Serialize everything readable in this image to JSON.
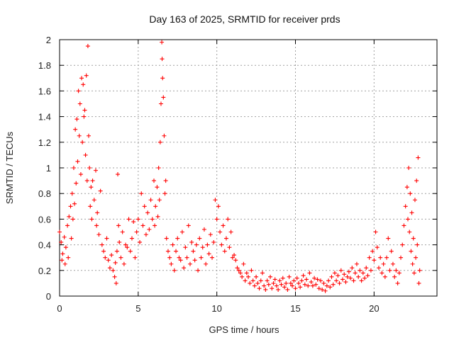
{
  "chart_data": {
    "type": "scatter",
    "title": "Day 163 of 2025, SRMTID for receiver prds",
    "xlabel": "GPS time / hours",
    "ylabel": "SRMTID / TECUs",
    "xlim": [
      0,
      24
    ],
    "ylim": [
      0,
      2
    ],
    "xticks": [
      0,
      5,
      10,
      15,
      20
    ],
    "yticks": [
      0,
      0.2,
      0.4,
      0.6,
      0.8,
      1,
      1.2,
      1.4,
      1.6,
      1.8,
      2
    ],
    "xtick_labels": [
      "0",
      "5",
      "10",
      "15",
      "20"
    ],
    "ytick_labels": [
      "0",
      "0.2",
      "0.4",
      "0.6",
      "0.8",
      "1",
      "1.2",
      "1.4",
      "1.6",
      "1.8",
      "2"
    ],
    "grid": true,
    "marker": "+",
    "color": "#ff0000",
    "series": [
      {
        "name": "SRMTID",
        "points": [
          [
            0.0,
            0.5
          ],
          [
            0.1,
            0.42
          ],
          [
            0.15,
            0.28
          ],
          [
            0.2,
            0.33
          ],
          [
            0.3,
            0.46
          ],
          [
            0.35,
            0.25
          ],
          [
            0.4,
            0.38
          ],
          [
            0.5,
            0.55
          ],
          [
            0.55,
            0.3
          ],
          [
            0.6,
            0.62
          ],
          [
            0.7,
            0.7
          ],
          [
            0.75,
            0.45
          ],
          [
            0.8,
            0.8
          ],
          [
            0.85,
            0.6
          ],
          [
            0.9,
            1.0
          ],
          [
            0.95,
            0.72
          ],
          [
            1.0,
            1.3
          ],
          [
            1.05,
            0.88
          ],
          [
            1.1,
            1.38
          ],
          [
            1.15,
            1.05
          ],
          [
            1.2,
            1.6
          ],
          [
            1.25,
            1.25
          ],
          [
            1.3,
            1.5
          ],
          [
            1.35,
            0.95
          ],
          [
            1.4,
            1.7
          ],
          [
            1.45,
            1.2
          ],
          [
            1.5,
            1.65
          ],
          [
            1.55,
            1.4
          ],
          [
            1.6,
            1.45
          ],
          [
            1.65,
            1.1
          ],
          [
            1.7,
            1.72
          ],
          [
            1.75,
            0.9
          ],
          [
            1.8,
            1.95
          ],
          [
            1.85,
            1.25
          ],
          [
            1.9,
            1.0
          ],
          [
            1.95,
            0.7
          ],
          [
            2.0,
            0.85
          ],
          [
            2.05,
            0.6
          ],
          [
            2.1,
            0.9
          ],
          [
            2.2,
            0.75
          ],
          [
            2.3,
            0.98
          ],
          [
            2.35,
            0.55
          ],
          [
            2.4,
            0.65
          ],
          [
            2.5,
            0.48
          ],
          [
            2.6,
            0.82
          ],
          [
            2.7,
            0.4
          ],
          [
            2.8,
            0.35
          ],
          [
            2.9,
            0.3
          ],
          [
            3.0,
            0.45
          ],
          [
            3.1,
            0.28
          ],
          [
            3.2,
            0.22
          ],
          [
            3.3,
            0.32
          ],
          [
            3.4,
            0.2
          ],
          [
            3.5,
            0.15
          ],
          [
            3.55,
            0.26
          ],
          [
            3.6,
            0.1
          ],
          [
            3.65,
            0.35
          ],
          [
            3.7,
            0.95
          ],
          [
            3.75,
            0.55
          ],
          [
            3.8,
            0.42
          ],
          [
            3.9,
            0.3
          ],
          [
            4.0,
            0.5
          ],
          [
            4.1,
            0.25
          ],
          [
            4.2,
            0.4
          ],
          [
            4.3,
            0.38
          ],
          [
            4.4,
            0.6
          ],
          [
            4.5,
            0.35
          ],
          [
            4.6,
            0.45
          ],
          [
            4.7,
            0.58
          ],
          [
            4.8,
            0.3
          ],
          [
            4.9,
            0.5
          ],
          [
            5.0,
            0.6
          ],
          [
            5.1,
            0.42
          ],
          [
            5.2,
            0.8
          ],
          [
            5.3,
            0.55
          ],
          [
            5.4,
            0.7
          ],
          [
            5.5,
            0.48
          ],
          [
            5.6,
            0.65
          ],
          [
            5.7,
            0.52
          ],
          [
            5.8,
            0.75
          ],
          [
            5.9,
            0.6
          ],
          [
            6.0,
            0.9
          ],
          [
            6.05,
            0.55
          ],
          [
            6.1,
            0.7
          ],
          [
            6.2,
            0.85
          ],
          [
            6.25,
            0.62
          ],
          [
            6.3,
            1.0
          ],
          [
            6.35,
            0.75
          ],
          [
            6.4,
            1.2
          ],
          [
            6.45,
            1.5
          ],
          [
            6.5,
            1.98
          ],
          [
            6.52,
            1.85
          ],
          [
            6.55,
            1.7
          ],
          [
            6.6,
            1.55
          ],
          [
            6.65,
            1.25
          ],
          [
            6.7,
            0.8
          ],
          [
            6.75,
            0.9
          ],
          [
            6.8,
            0.45
          ],
          [
            6.9,
            0.35
          ],
          [
            7.0,
            0.3
          ],
          [
            7.1,
            0.25
          ],
          [
            7.2,
            0.4
          ],
          [
            7.3,
            0.2
          ],
          [
            7.4,
            0.35
          ],
          [
            7.5,
            0.45
          ],
          [
            7.6,
            0.3
          ],
          [
            7.7,
            0.28
          ],
          [
            7.8,
            0.5
          ],
          [
            7.9,
            0.22
          ],
          [
            8.0,
            0.38
          ],
          [
            8.1,
            0.3
          ],
          [
            8.2,
            0.55
          ],
          [
            8.3,
            0.25
          ],
          [
            8.4,
            0.42
          ],
          [
            8.5,
            0.35
          ],
          [
            8.6,
            0.28
          ],
          [
            8.7,
            0.4
          ],
          [
            8.8,
            0.2
          ],
          [
            8.9,
            0.45
          ],
          [
            9.0,
            0.3
          ],
          [
            9.1,
            0.38
          ],
          [
            9.2,
            0.52
          ],
          [
            9.3,
            0.25
          ],
          [
            9.4,
            0.4
          ],
          [
            9.5,
            0.33
          ],
          [
            9.6,
            0.48
          ],
          [
            9.7,
            0.3
          ],
          [
            9.8,
            0.42
          ],
          [
            9.9,
            0.75
          ],
          [
            10.0,
            0.6
          ],
          [
            10.1,
            0.7
          ],
          [
            10.2,
            0.5
          ],
          [
            10.3,
            0.4
          ],
          [
            10.4,
            0.55
          ],
          [
            10.5,
            0.35
          ],
          [
            10.6,
            0.45
          ],
          [
            10.7,
            0.6
          ],
          [
            10.8,
            0.38
          ],
          [
            10.9,
            0.5
          ],
          [
            11.0,
            0.3
          ],
          [
            11.1,
            0.32
          ],
          [
            11.2,
            0.28
          ],
          [
            11.3,
            0.22
          ],
          [
            11.4,
            0.2
          ],
          [
            11.5,
            0.18
          ],
          [
            11.6,
            0.15
          ],
          [
            11.7,
            0.25
          ],
          [
            11.8,
            0.12
          ],
          [
            11.9,
            0.18
          ],
          [
            12.0,
            0.15
          ],
          [
            12.1,
            0.1
          ],
          [
            12.2,
            0.2
          ],
          [
            12.3,
            0.12
          ],
          [
            12.4,
            0.08
          ],
          [
            12.5,
            0.15
          ],
          [
            12.6,
            0.1
          ],
          [
            12.7,
            0.06
          ],
          [
            12.8,
            0.12
          ],
          [
            12.9,
            0.18
          ],
          [
            13.0,
            0.08
          ],
          [
            13.1,
            0.05
          ],
          [
            13.2,
            0.12
          ],
          [
            13.3,
            0.09
          ],
          [
            13.4,
            0.15
          ],
          [
            13.5,
            0.06
          ],
          [
            13.6,
            0.1
          ],
          [
            13.7,
            0.13
          ],
          [
            13.8,
            0.08
          ],
          [
            13.9,
            0.05
          ],
          [
            14.0,
            0.12
          ],
          [
            14.1,
            0.09
          ],
          [
            14.2,
            0.14
          ],
          [
            14.3,
            0.07
          ],
          [
            14.4,
            0.1
          ],
          [
            14.5,
            0.05
          ],
          [
            14.6,
            0.15
          ],
          [
            14.7,
            0.1
          ],
          [
            14.8,
            0.08
          ],
          [
            14.9,
            0.12
          ],
          [
            15.0,
            0.06
          ],
          [
            15.1,
            0.14
          ],
          [
            15.2,
            0.1
          ],
          [
            15.3,
            0.07
          ],
          [
            15.4,
            0.12
          ],
          [
            15.5,
            0.16
          ],
          [
            15.6,
            0.09
          ],
          [
            15.7,
            0.13
          ],
          [
            15.8,
            0.08
          ],
          [
            15.9,
            0.18
          ],
          [
            16.0,
            0.11
          ],
          [
            16.1,
            0.08
          ],
          [
            16.2,
            0.14
          ],
          [
            16.3,
            0.09
          ],
          [
            16.4,
            0.13
          ],
          [
            16.5,
            0.06
          ],
          [
            16.6,
            0.12
          ],
          [
            16.7,
            0.05
          ],
          [
            16.8,
            0.1
          ],
          [
            16.9,
            0.04
          ],
          [
            17.0,
            0.08
          ],
          [
            17.1,
            0.12
          ],
          [
            17.2,
            0.07
          ],
          [
            17.3,
            0.15
          ],
          [
            17.4,
            0.09
          ],
          [
            17.5,
            0.18
          ],
          [
            17.6,
            0.12
          ],
          [
            17.7,
            0.16
          ],
          [
            17.8,
            0.1
          ],
          [
            17.9,
            0.2
          ],
          [
            18.0,
            0.13
          ],
          [
            18.1,
            0.17
          ],
          [
            18.2,
            0.11
          ],
          [
            18.3,
            0.15
          ],
          [
            18.4,
            0.19
          ],
          [
            18.5,
            0.14
          ],
          [
            18.6,
            0.22
          ],
          [
            18.7,
            0.12
          ],
          [
            18.8,
            0.18
          ],
          [
            18.9,
            0.25
          ],
          [
            19.0,
            0.15
          ],
          [
            19.1,
            0.2
          ],
          [
            19.2,
            0.12
          ],
          [
            19.3,
            0.18
          ],
          [
            19.4,
            0.14
          ],
          [
            19.5,
            0.22
          ],
          [
            19.6,
            0.16
          ],
          [
            19.7,
            0.3
          ],
          [
            19.8,
            0.2
          ],
          [
            19.9,
            0.35
          ],
          [
            20.0,
            0.28
          ],
          [
            20.1,
            0.5
          ],
          [
            20.2,
            0.38
          ],
          [
            20.3,
            0.22
          ],
          [
            20.4,
            0.3
          ],
          [
            20.5,
            0.18
          ],
          [
            20.6,
            0.25
          ],
          [
            20.7,
            0.15
          ],
          [
            20.8,
            0.3
          ],
          [
            20.9,
            0.45
          ],
          [
            21.0,
            0.2
          ],
          [
            21.1,
            0.35
          ],
          [
            21.2,
            0.25
          ],
          [
            21.3,
            0.15
          ],
          [
            21.4,
            0.2
          ],
          [
            21.5,
            0.1
          ],
          [
            21.6,
            0.18
          ],
          [
            21.7,
            0.3
          ],
          [
            21.8,
            0.4
          ],
          [
            21.9,
            0.55
          ],
          [
            22.0,
            0.7
          ],
          [
            22.1,
            0.85
          ],
          [
            22.15,
            0.6
          ],
          [
            22.2,
            1.0
          ],
          [
            22.25,
            0.5
          ],
          [
            22.3,
            0.8
          ],
          [
            22.35,
            0.35
          ],
          [
            22.4,
            0.65
          ],
          [
            22.45,
            0.25
          ],
          [
            22.5,
            0.45
          ],
          [
            22.55,
            0.18
          ],
          [
            22.6,
            0.75
          ],
          [
            22.65,
            0.3
          ],
          [
            22.7,
            0.9
          ],
          [
            22.75,
            0.4
          ],
          [
            22.8,
            1.08
          ],
          [
            22.85,
            0.1
          ],
          [
            22.9,
            0.2
          ]
        ]
      }
    ]
  }
}
